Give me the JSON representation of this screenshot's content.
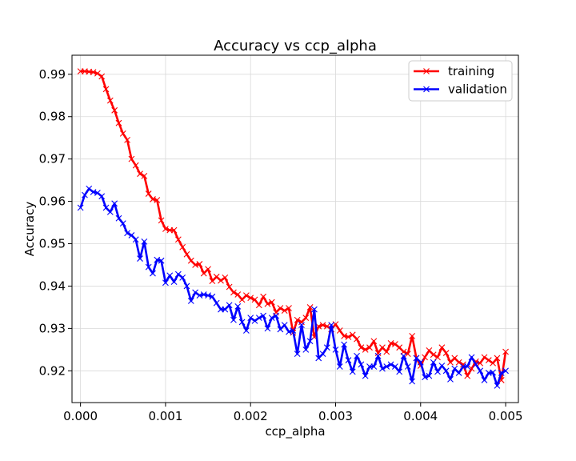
{
  "chart_data": {
    "type": "line",
    "title": "Accuracy vs ccp_alpha",
    "xlabel": "ccp_alpha",
    "ylabel": "Accuracy",
    "xlim": [
      -0.0001,
      0.00515
    ],
    "ylim": [
      0.9125,
      0.9945
    ],
    "xticks": [
      0.0,
      0.001,
      0.002,
      0.003,
      0.004,
      0.005
    ],
    "xtick_labels": [
      "0.000",
      "0.001",
      "0.002",
      "0.003",
      "0.004",
      "0.005"
    ],
    "yticks": [
      0.92,
      0.93,
      0.94,
      0.95,
      0.96,
      0.97,
      0.98,
      0.99
    ],
    "ytick_labels": [
      "0.92",
      "0.93",
      "0.94",
      "0.95",
      "0.96",
      "0.97",
      "0.98",
      "0.99"
    ],
    "grid": true,
    "legend_position": "top-right",
    "x": {
      "start": 0.0,
      "step": 5e-05,
      "count": 101
    },
    "series": [
      {
        "name": "training",
        "color": "#ff0000",
        "marker": "x",
        "values": [
          0.9907,
          0.9907,
          0.9906,
          0.9905,
          0.9902,
          0.9895,
          0.9865,
          0.9838,
          0.9815,
          0.9785,
          0.976,
          0.9745,
          0.97,
          0.9685,
          0.9665,
          0.966,
          0.9618,
          0.9605,
          0.9603,
          0.9555,
          0.9535,
          0.9532,
          0.9532,
          0.951,
          0.9492,
          0.9475,
          0.946,
          0.945,
          0.9452,
          0.943,
          0.944,
          0.9412,
          0.9422,
          0.9413,
          0.942,
          0.9398,
          0.9385,
          0.938,
          0.9368,
          0.9378,
          0.9372,
          0.9368,
          0.9355,
          0.9375,
          0.9358,
          0.9362,
          0.9338,
          0.9348,
          0.9342,
          0.9348,
          0.929,
          0.932,
          0.9315,
          0.9325,
          0.935,
          0.928,
          0.9305,
          0.9308,
          0.9305,
          0.9298,
          0.931,
          0.9295,
          0.9282,
          0.928,
          0.9285,
          0.9275,
          0.9255,
          0.925,
          0.9255,
          0.927,
          0.9242,
          0.9255,
          0.9245,
          0.9265,
          0.9263,
          0.9255,
          0.9245,
          0.924,
          0.9282,
          0.923,
          0.9212,
          0.9232,
          0.9248,
          0.9238,
          0.9232,
          0.9255,
          0.9242,
          0.922,
          0.923,
          0.922,
          0.9215,
          0.9188,
          0.9205,
          0.9222,
          0.9218,
          0.9232,
          0.9225,
          0.9218,
          0.923,
          0.9178,
          0.9245
        ]
      },
      {
        "name": "validation",
        "color": "#0000ff",
        "marker": "x",
        "values": [
          0.9585,
          0.9615,
          0.963,
          0.9622,
          0.962,
          0.9612,
          0.9585,
          0.9575,
          0.9595,
          0.956,
          0.9548,
          0.9525,
          0.952,
          0.951,
          0.9465,
          0.9505,
          0.9445,
          0.943,
          0.9462,
          0.946,
          0.9408,
          0.9425,
          0.941,
          0.9428,
          0.942,
          0.94,
          0.9365,
          0.9385,
          0.9378,
          0.938,
          0.9378,
          0.9375,
          0.936,
          0.9345,
          0.9345,
          0.9355,
          0.932,
          0.9352,
          0.9315,
          0.9295,
          0.9325,
          0.9318,
          0.9325,
          0.933,
          0.93,
          0.9325,
          0.933,
          0.9298,
          0.9308,
          0.9292,
          0.9295,
          0.924,
          0.9308,
          0.925,
          0.927,
          0.9345,
          0.923,
          0.924,
          0.9255,
          0.9308,
          0.925,
          0.921,
          0.9262,
          0.9225,
          0.9198,
          0.9235,
          0.9215,
          0.9188,
          0.921,
          0.921,
          0.9235,
          0.9205,
          0.921,
          0.9215,
          0.921,
          0.9198,
          0.9235,
          0.921,
          0.9175,
          0.923,
          0.922,
          0.9185,
          0.9188,
          0.922,
          0.9198,
          0.9212,
          0.92,
          0.918,
          0.9205,
          0.9195,
          0.921,
          0.921,
          0.9232,
          0.9215,
          0.92,
          0.9178,
          0.9195,
          0.9196,
          0.9165,
          0.9195,
          0.92
        ]
      }
    ]
  }
}
